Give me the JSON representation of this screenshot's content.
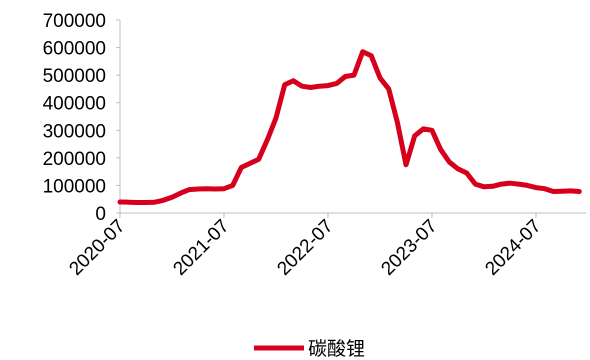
{
  "chart_data": {
    "type": "line",
    "title": "",
    "xlabel": "",
    "ylabel": "",
    "ylim": [
      0,
      700000
    ],
    "yticks": [
      "0",
      "100000",
      "200000",
      "300000",
      "400000",
      "500000",
      "600000",
      "700000"
    ],
    "xticks": [
      "2020-07",
      "2021-07",
      "2022-07",
      "2023-07",
      "2024-07"
    ],
    "grid": false,
    "legend_position": "bottom-center",
    "series": [
      {
        "name": "碳酸锂",
        "color": "#d7001c",
        "x": [
          "2020-07",
          "2020-08",
          "2020-09",
          "2020-10",
          "2020-11",
          "2020-12",
          "2021-01",
          "2021-02",
          "2021-03",
          "2021-04",
          "2021-05",
          "2021-06",
          "2021-07",
          "2021-08",
          "2021-09",
          "2021-10",
          "2021-11",
          "2021-12",
          "2022-01",
          "2022-02",
          "2022-03",
          "2022-04",
          "2022-05",
          "2022-06",
          "2022-07",
          "2022-08",
          "2022-09",
          "2022-10",
          "2022-11",
          "2022-12",
          "2023-01",
          "2023-02",
          "2023-03",
          "2023-04",
          "2023-05",
          "2023-06",
          "2023-07",
          "2023-08",
          "2023-09",
          "2023-10",
          "2023-11",
          "2023-12",
          "2024-01",
          "2024-02",
          "2024-03",
          "2024-04",
          "2024-05",
          "2024-06",
          "2024-07",
          "2024-08",
          "2024-09",
          "2024-10",
          "2024-11",
          "2024-12"
        ],
        "values": [
          40000,
          39000,
          38000,
          38000,
          39000,
          46000,
          57000,
          72000,
          85000,
          87000,
          88000,
          87000,
          88000,
          100000,
          165000,
          180000,
          195000,
          265000,
          345000,
          465000,
          480000,
          460000,
          455000,
          460000,
          462000,
          470000,
          495000,
          500000,
          585000,
          570000,
          490000,
          450000,
          330000,
          175000,
          280000,
          305000,
          300000,
          230000,
          185000,
          160000,
          145000,
          105000,
          95000,
          97000,
          105000,
          108000,
          105000,
          100000,
          92000,
          88000,
          78000,
          79000,
          80000,
          78000
        ]
      }
    ]
  }
}
